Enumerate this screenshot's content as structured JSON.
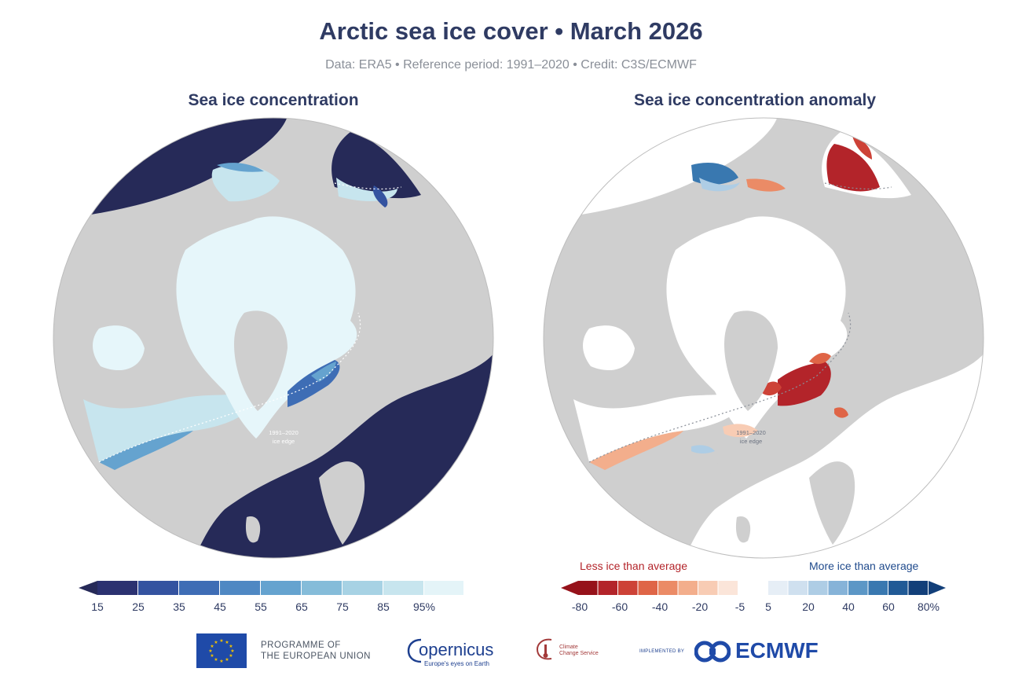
{
  "title": "Arctic sea ice cover • March 2026",
  "subtitle": "Data: ERA5 • Reference period: 1991–2020 • Credit: C3S/ECMWF",
  "left_panel": {
    "title": "Sea ice concentration",
    "annotation_line1": "1991–2020",
    "annotation_line2": "ice edge",
    "colorbar": {
      "ticks": [
        "15",
        "25",
        "35",
        "45",
        "55",
        "65",
        "75",
        "85",
        "95%"
      ],
      "colors": [
        "#2b3170",
        "#3453a0",
        "#3e6db5",
        "#4f88c3",
        "#65a3cf",
        "#85bcd9",
        "#a7d2e4",
        "#c7e5ee",
        "#e4f4f8"
      ],
      "below_color": "#262a58"
    }
  },
  "right_panel": {
    "title": "Sea ice concentration anomaly",
    "annotation_line1": "1991–2020",
    "annotation_line2": "ice edge",
    "colorbar": {
      "less_label": "Less ice than average",
      "more_label": "More ice than average",
      "ticks_neg": [
        "-80",
        "-60",
        "-40",
        "-20",
        "-5"
      ],
      "ticks_pos": [
        "5",
        "20",
        "40",
        "60",
        "80%"
      ],
      "neg_colors": [
        "#96121a",
        "#b3242a",
        "#cd4237",
        "#df6547",
        "#eb8b66",
        "#f3ae8c",
        "#f8ccb4",
        "#fbe5d9"
      ],
      "pos_colors": [
        "#e6eef6",
        "#cfe0ef",
        "#aecde5",
        "#86b3d8",
        "#5c97c6",
        "#3978b0",
        "#215a96",
        "#123f79"
      ],
      "less_color": "#b3242a",
      "more_color": "#1f4a8c"
    }
  },
  "footer": {
    "eu_line1": "PROGRAMME OF",
    "eu_line2": "THE EUROPEAN UNION",
    "copernicus": "opernicus",
    "copernicus_sub": "Europe's eyes on Earth",
    "c3s_line1": "Climate",
    "c3s_line2": "Change Service",
    "implemented_by": "IMPLEMENTED BY",
    "ecmwf": "ECMWF"
  },
  "colors": {
    "land": "#cfcfcf",
    "ocean_dark": "#262a58",
    "ice": "#e6f6fa",
    "title": "#2f3b63"
  }
}
